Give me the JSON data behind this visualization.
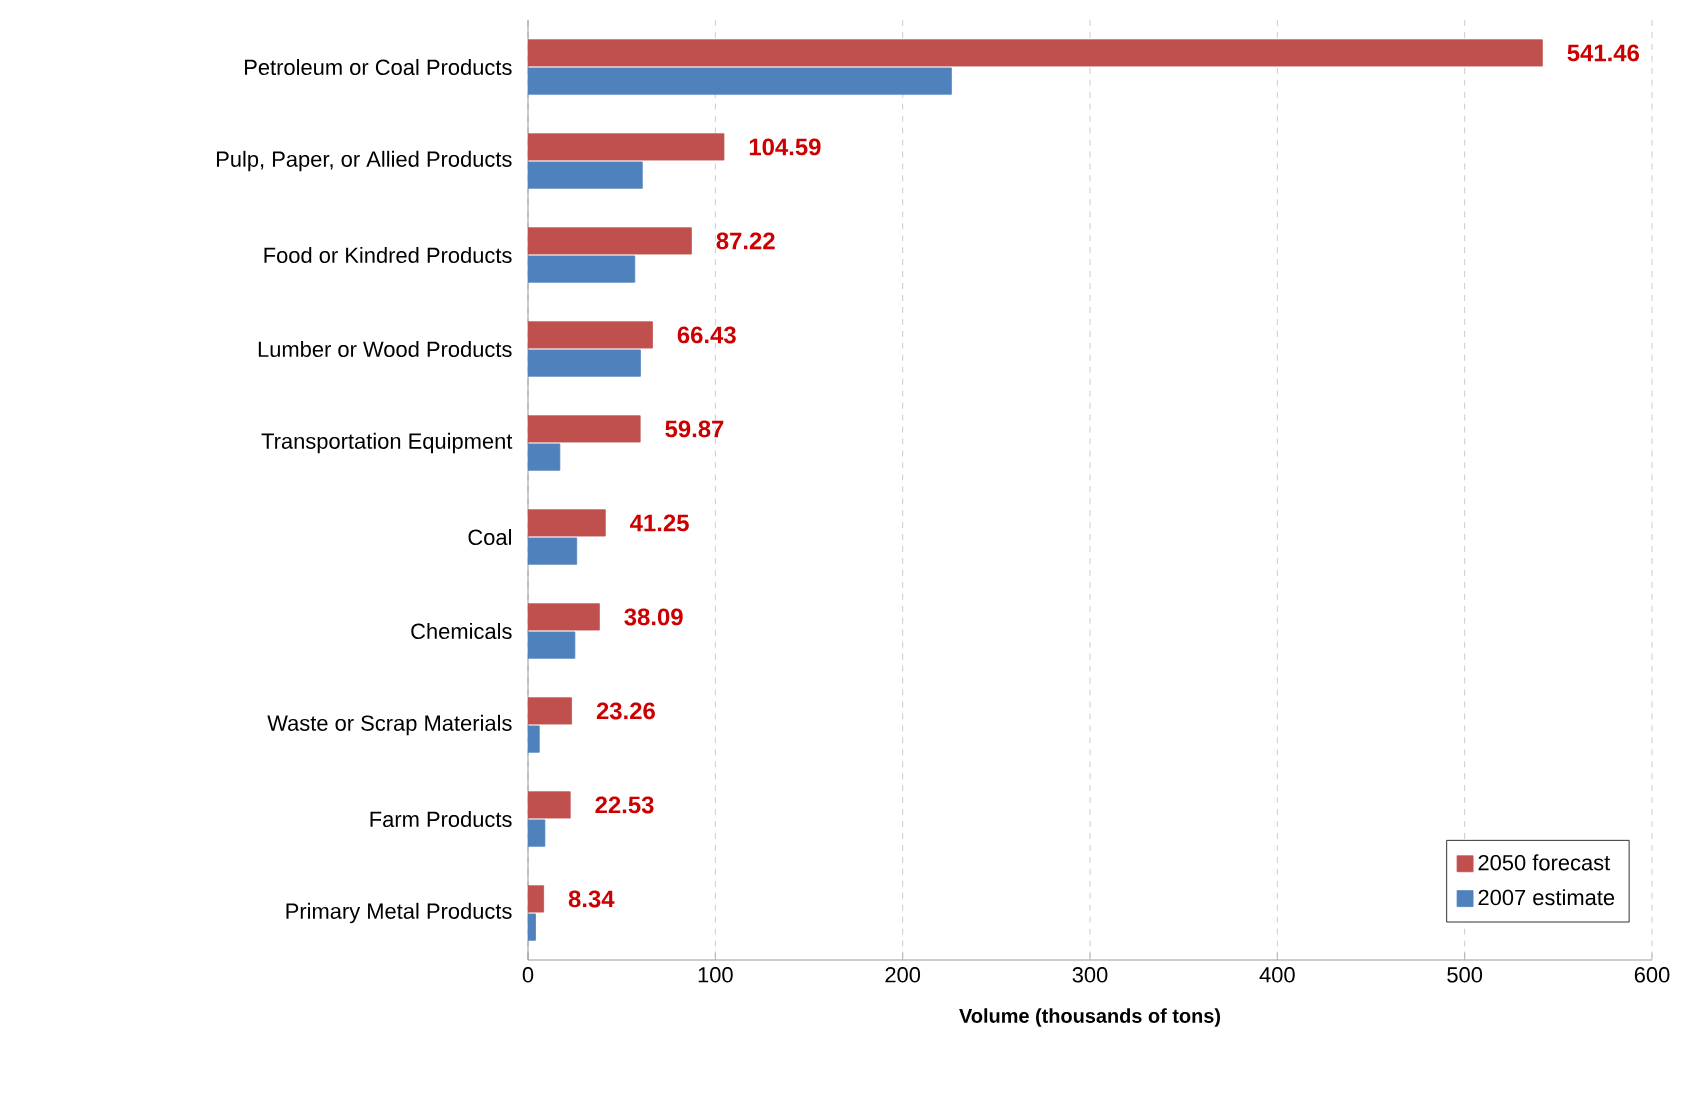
{
  "chart_data": {
    "type": "bar",
    "orientation": "horizontal",
    "categories": [
      "Petroleum or Coal Products",
      "Pulp, Paper, or Allied Products",
      "Food or Kindred Products",
      "Lumber or Wood Products",
      "Transportation Equipment",
      "Coal",
      "Chemicals",
      "Waste or Scrap Materials",
      "Farm Products",
      "Primary Metal Products"
    ],
    "series": [
      {
        "name": "2050 forecast",
        "color": "#c0504d",
        "values": [
          541.46,
          104.59,
          87.22,
          66.43,
          59.87,
          41.25,
          38.09,
          23.26,
          22.53,
          8.34
        ],
        "value_labels": [
          "541.46",
          "104.59",
          "87.22",
          "66.43",
          "59.87",
          "41.25",
          "38.09",
          "23.26",
          "22.53",
          "8.34"
        ]
      },
      {
        "name": "2007 estimate",
        "color": "#4f81bd",
        "values": [
          226,
          61,
          57,
          60,
          17,
          26,
          25,
          6,
          9,
          4
        ]
      }
    ],
    "xlabel": "Volume (thousands of tons)",
    "xlim": [
      0,
      600
    ],
    "xticks": [
      0,
      100,
      200,
      300,
      400,
      500,
      600
    ],
    "grid": "x",
    "legend": "bottom right"
  }
}
